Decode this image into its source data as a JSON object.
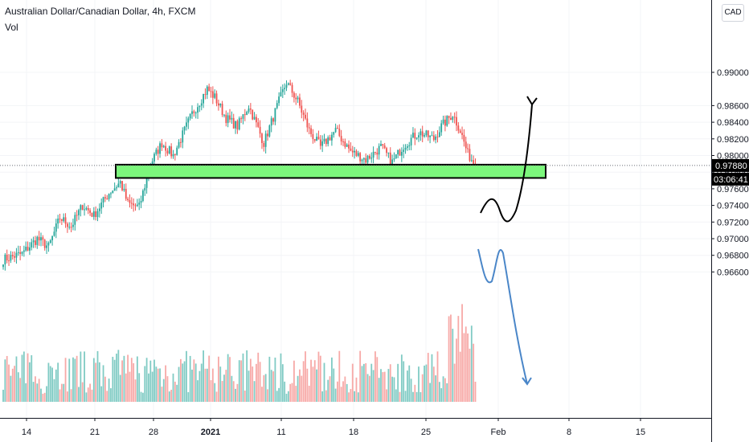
{
  "header": {
    "title": "Australian Dollar/Canadian Dollar, 4h, FXCM",
    "volume_label": "Vol",
    "currency_button": "CAD"
  },
  "colors": {
    "up": "#26a69a",
    "down": "#ef5350",
    "volume_up": "#80cbc4",
    "volume_down": "#f7a9a7",
    "zone_fill": "#7cf77c",
    "bullish_arrow": "#000000",
    "bearish_arrow": "#4a86c8",
    "price_tag_bg": "#000000"
  },
  "chart_data": {
    "type": "candlestick",
    "symbol": "Australian Dollar/Canadian Dollar",
    "interval": "4h",
    "source": "FXCM",
    "y_axis": {
      "ticks": [
        0.966,
        0.968,
        0.97,
        0.972,
        0.974,
        0.976,
        0.978,
        0.98,
        0.982,
        0.984,
        0.986,
        0.99
      ],
      "tick_labels": [
        "0.96600",
        "0.96800",
        "0.97000",
        "0.97200",
        "0.97400",
        "0.97600",
        "0.97800",
        "0.98000",
        "0.98200",
        "0.98400",
        "0.98600",
        "0.99000"
      ]
    },
    "x_axis": {
      "tick_labels": [
        {
          "label": "14",
          "bold": false
        },
        {
          "label": "21",
          "bold": false
        },
        {
          "label": "28",
          "bold": false
        },
        {
          "label": "2021",
          "bold": true
        },
        {
          "label": "11",
          "bold": false
        },
        {
          "label": "18",
          "bold": false
        },
        {
          "label": "25",
          "bold": false
        },
        {
          "label": "Feb",
          "bold": false
        },
        {
          "label": "8",
          "bold": false
        },
        {
          "label": "15",
          "bold": false
        }
      ]
    },
    "last_price": "0.97880",
    "countdown": "03:06:41",
    "support_zone": [
      0.9773,
      0.9789
    ],
    "anchors": [
      [
        0,
        0.9675
      ],
      [
        10,
        0.9682
      ],
      [
        18,
        0.97
      ],
      [
        24,
        0.969
      ],
      [
        30,
        0.9725
      ],
      [
        36,
        0.9715
      ],
      [
        42,
        0.974
      ],
      [
        48,
        0.9728
      ],
      [
        56,
        0.9755
      ],
      [
        62,
        0.9768
      ],
      [
        66,
        0.9742
      ],
      [
        72,
        0.9738
      ],
      [
        78,
        0.979
      ],
      [
        84,
        0.9815
      ],
      [
        90,
        0.98
      ],
      [
        100,
        0.985
      ],
      [
        108,
        0.988
      ],
      [
        112,
        0.987
      ],
      [
        118,
        0.9845
      ],
      [
        124,
        0.9835
      ],
      [
        130,
        0.986
      ],
      [
        138,
        0.9815
      ],
      [
        146,
        0.9865
      ],
      [
        150,
        0.9888
      ],
      [
        156,
        0.9865
      ],
      [
        162,
        0.983
      ],
      [
        168,
        0.981
      ],
      [
        176,
        0.983
      ],
      [
        184,
        0.9805
      ],
      [
        192,
        0.9795
      ],
      [
        200,
        0.981
      ],
      [
        206,
        0.9792
      ],
      [
        212,
        0.9812
      ],
      [
        220,
        0.9828
      ],
      [
        228,
        0.982
      ],
      [
        232,
        0.9835
      ],
      [
        238,
        0.985
      ],
      [
        242,
        0.983
      ],
      [
        246,
        0.9802
      ],
      [
        250,
        0.9789
      ]
    ],
    "bars": 251
  }
}
